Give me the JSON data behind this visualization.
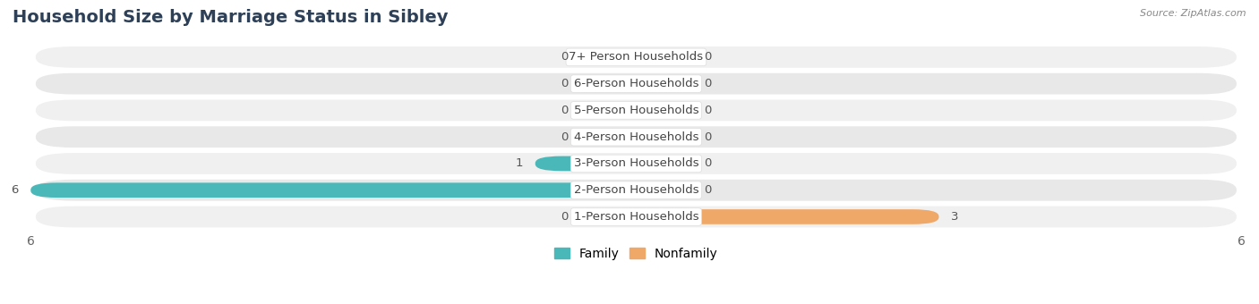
{
  "title": "Household Size by Marriage Status in Sibley",
  "source": "Source: ZipAtlas.com",
  "categories": [
    "7+ Person Households",
    "6-Person Households",
    "5-Person Households",
    "4-Person Households",
    "3-Person Households",
    "2-Person Households",
    "1-Person Households"
  ],
  "family_values": [
    0,
    0,
    0,
    0,
    1,
    6,
    0
  ],
  "nonfamily_values": [
    0,
    0,
    0,
    0,
    0,
    0,
    3
  ],
  "family_color": "#4ab8b8",
  "nonfamily_color": "#f0a868",
  "xlim": [
    -6,
    6
  ],
  "row_bg_colors": [
    "#f0f0f0",
    "#e8e8e8"
  ],
  "title_fontsize": 14,
  "axis_fontsize": 10,
  "label_fontsize": 9.5,
  "value_fontsize": 9.5,
  "stub_size": 0.55
}
